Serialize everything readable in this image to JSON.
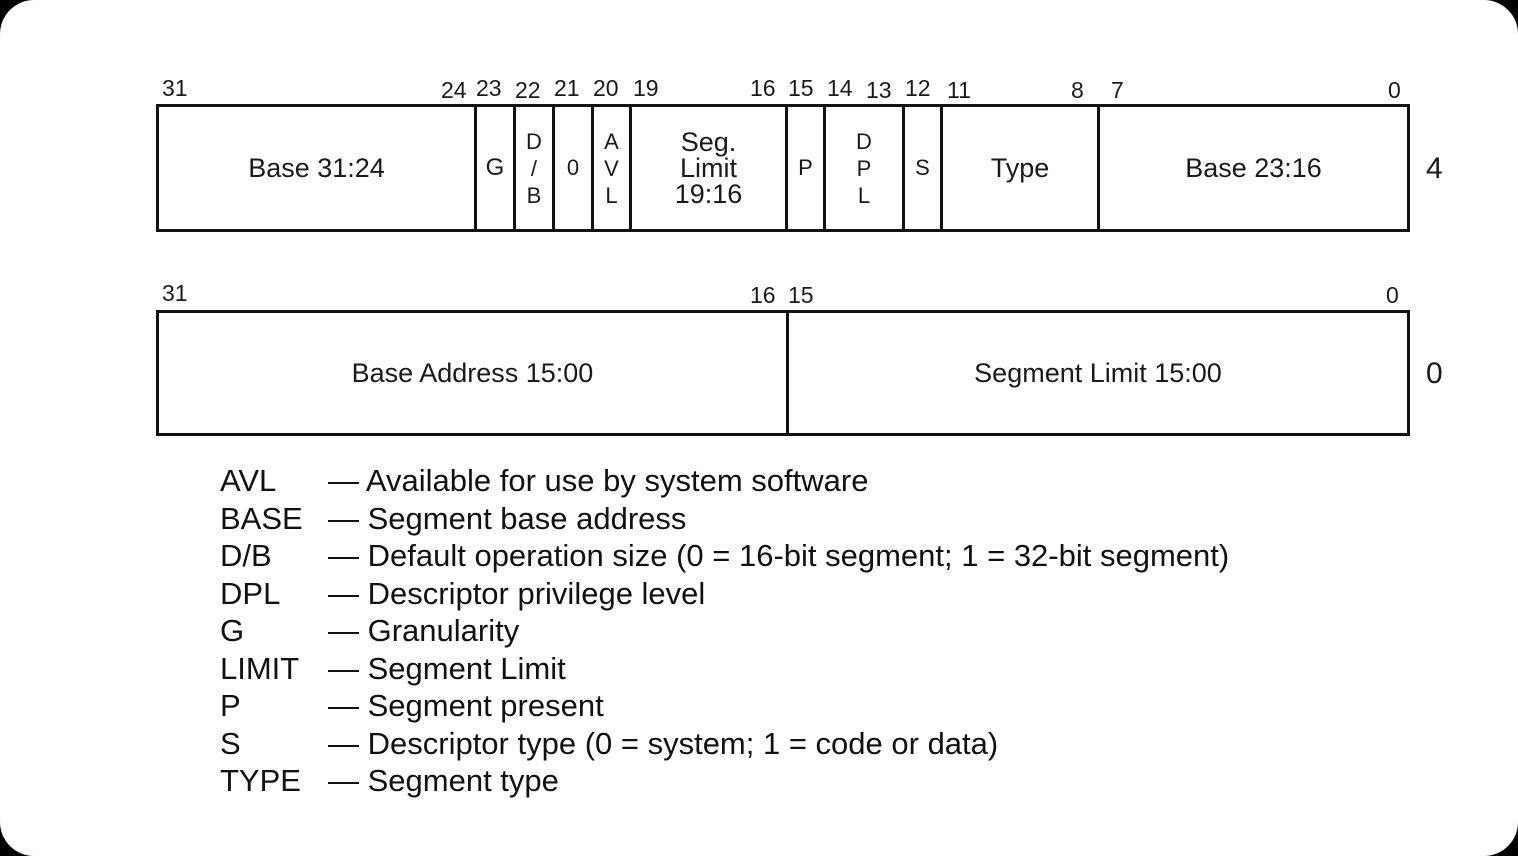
{
  "descriptor": {
    "upper_word": {
      "offset": "4",
      "bit_labels": [
        "31",
        "24",
        "23",
        "22",
        "21",
        "20",
        "19",
        "16",
        "15",
        "14",
        "13",
        "12",
        "11",
        "8",
        "7",
        "0"
      ],
      "fields": {
        "base_31_24": "Base 31:24",
        "g": "G",
        "db": [
          "D",
          "/",
          "B"
        ],
        "zero": "0",
        "avl": [
          "A",
          "V",
          "L"
        ],
        "seg_limit": [
          "Seg.",
          "Limit",
          "19:16"
        ],
        "p": "P",
        "dpl": [
          "D",
          "P",
          "L"
        ],
        "s": "S",
        "type": "Type",
        "base_23_16": "Base 23:16"
      }
    },
    "lower_word": {
      "offset": "0",
      "bit_labels": [
        "31",
        "16",
        "15",
        "0"
      ],
      "fields": {
        "base_address": "Base Address 15:00",
        "segment_limit": "Segment Limit 15:00"
      }
    }
  },
  "legend": [
    {
      "abbr": "AVL",
      "desc": "— Available for use by system software"
    },
    {
      "abbr": "BASE",
      "desc": "— Segment base address"
    },
    {
      "abbr": "D/B",
      "desc": "— Default operation size (0 = 16-bit segment; 1 = 32-bit segment)"
    },
    {
      "abbr": "DPL",
      "desc": "— Descriptor privilege level"
    },
    {
      "abbr": "G",
      "desc": "— Granularity"
    },
    {
      "abbr": "LIMIT",
      "desc": "— Segment Limit"
    },
    {
      "abbr": "P",
      "desc": "— Segment present"
    },
    {
      "abbr": "S",
      "desc": "— Descriptor type (0 = system; 1 = code or data)"
    },
    {
      "abbr": "TYPE",
      "desc": "— Segment type"
    }
  ]
}
